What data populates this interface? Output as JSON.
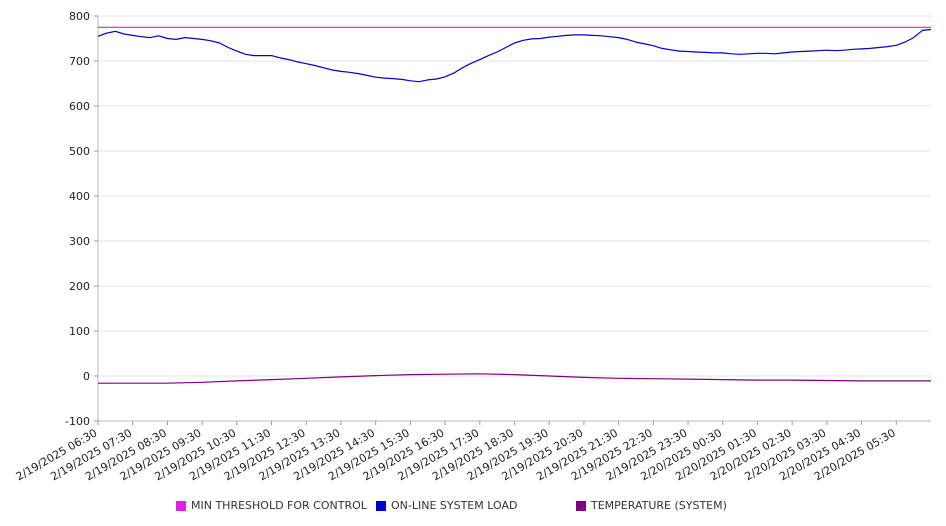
{
  "chart_data": {
    "type": "line",
    "ylim": [
      -100,
      800
    ],
    "yticks": [
      800,
      700,
      600,
      500,
      400,
      300,
      200,
      100,
      0,
      -100
    ],
    "grid": true,
    "legend_position": "bottom",
    "x_tick_labels": [
      "2/19/2025 06:30",
      "2/19/2025 07:30",
      "2/19/2025 08:30",
      "2/19/2025 09:30",
      "2/19/2025 10:30",
      "2/19/2025 11:30",
      "2/19/2025 12:30",
      "2/19/2025 13:30",
      "2/19/2025 14:30",
      "2/19/2025 15:30",
      "2/19/2025 16:30",
      "2/19/2025 17:30",
      "2/19/2025 18:30",
      "2/19/2025 19:30",
      "2/19/2025 20:30",
      "2/19/2025 21:30",
      "2/19/2025 22:30",
      "2/19/2025 23:30",
      "2/20/2025 00:30",
      "2/20/2025 01:30",
      "2/20/2025 02:30",
      "2/20/2025 03:30",
      "2/20/2025 04:30",
      "2/20/2025 05:30"
    ],
    "x_span_hours": [
      0,
      24
    ],
    "series": [
      {
        "name": "MIN THRESHOLD FOR CONTROL",
        "color": "#e020e0",
        "x": [
          0,
          24
        ],
        "values": [
          775,
          775
        ]
      },
      {
        "name": "ON-LINE SYSTEM LOAD",
        "color": "#0000cc",
        "x": [
          0,
          0.25,
          0.5,
          0.75,
          1,
          1.25,
          1.5,
          1.75,
          2,
          2.25,
          2.5,
          2.75,
          3,
          3.25,
          3.5,
          3.75,
          4,
          4.25,
          4.5,
          4.75,
          5,
          5.25,
          5.5,
          5.75,
          6,
          6.25,
          6.5,
          6.75,
          7,
          7.25,
          7.5,
          7.75,
          8,
          8.25,
          8.5,
          8.75,
          9,
          9.25,
          9.5,
          9.75,
          10,
          10.25,
          10.5,
          10.75,
          11,
          11.25,
          11.5,
          11.75,
          12,
          12.25,
          12.5,
          12.75,
          13,
          13.25,
          13.5,
          13.75,
          14,
          14.25,
          14.5,
          14.75,
          15,
          15.25,
          15.5,
          15.75,
          16,
          16.25,
          16.5,
          16.75,
          17,
          17.25,
          17.5,
          17.75,
          18,
          18.25,
          18.5,
          18.75,
          19,
          19.25,
          19.5,
          19.75,
          20,
          20.25,
          20.5,
          20.75,
          21,
          21.25,
          21.5,
          21.75,
          22,
          22.25,
          22.5,
          22.75,
          23,
          23.25,
          23.5,
          23.75,
          24
        ],
        "values": [
          755,
          762,
          766,
          760,
          757,
          754,
          752,
          756,
          750,
          748,
          752,
          750,
          748,
          745,
          740,
          730,
          722,
          715,
          712,
          712,
          712,
          707,
          703,
          698,
          694,
          690,
          685,
          680,
          677,
          675,
          672,
          668,
          664,
          662,
          661,
          659,
          656,
          654,
          658,
          660,
          665,
          673,
          685,
          695,
          703,
          712,
          720,
          730,
          740,
          746,
          749,
          750,
          753,
          755,
          757,
          758,
          758,
          757,
          756,
          754,
          752,
          748,
          742,
          738,
          734,
          728,
          725,
          722,
          721,
          720,
          719,
          718,
          718,
          716,
          715,
          716,
          717,
          717,
          716,
          718,
          720,
          721,
          722,
          723,
          724,
          723,
          724,
          726,
          727,
          728,
          730,
          732,
          735,
          742,
          752,
          768,
          770
        ]
      },
      {
        "name": "TEMPERATURE (SYSTEM)",
        "color": "#800080",
        "x": [
          0,
          1,
          2,
          3,
          4,
          5,
          6,
          7,
          8,
          9,
          10,
          11,
          12,
          13,
          14,
          15,
          16,
          17,
          18,
          19,
          20,
          21,
          22,
          23,
          24
        ],
        "values": [
          -16,
          -16,
          -16,
          -14,
          -11,
          -8,
          -5,
          -2,
          1,
          3,
          4,
          5,
          3,
          0,
          -3,
          -5,
          -6,
          -7,
          -8,
          -9,
          -9,
          -10,
          -11,
          -11,
          -11
        ]
      }
    ]
  }
}
